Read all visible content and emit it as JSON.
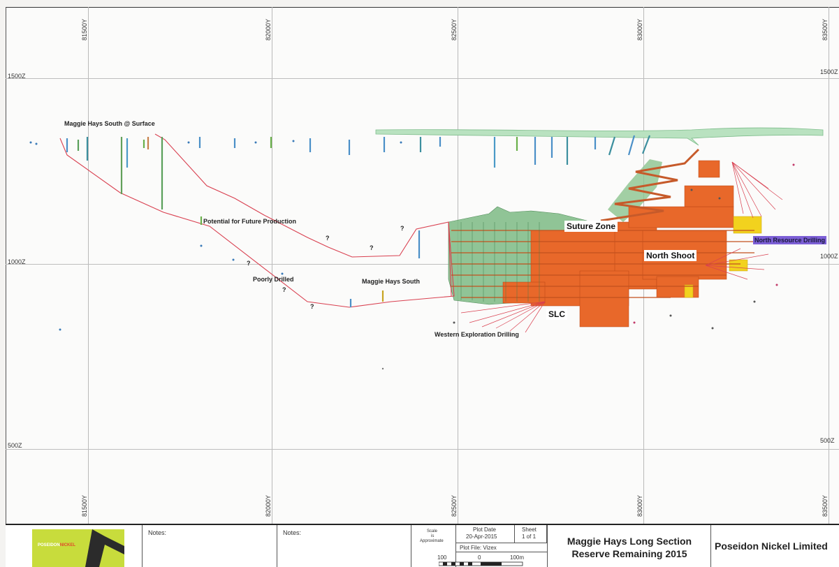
{
  "grid": {
    "northing_labels": [
      "81500Y",
      "82000Y",
      "82500Y",
      "83000Y",
      "83500Y"
    ],
    "elevation_labels": [
      "1500Z",
      "1000Z",
      "500Z"
    ]
  },
  "annotations": {
    "surface": "Maggie Hays South @ Surface",
    "future": "Potential for Future Production",
    "poorly": "Poorly Drilled",
    "mhs": "Maggie Hays South",
    "western": "Western Exploration Drilling",
    "suture": "Suture Zone",
    "north_shoot": "North Shoot",
    "slc": "SLC",
    "north_resource": "North Resource Drilling",
    "question": "?"
  },
  "colors": {
    "outline_red": "#d94050",
    "orebody_orange": "#e8682a",
    "green_domain": "#5fa86a",
    "surface_green": "#9ed4a8",
    "highlight_purple": "#7c5fd6",
    "logo_lime": "#c8dc3c"
  },
  "title_block": {
    "logo_text_a": "POSEIDON",
    "logo_text_b": "NICKEL",
    "notes_1": "Notes:",
    "notes_2": "Notes:",
    "scale_1": "Scale",
    "scale_2": "is",
    "scale_3": "Approximate",
    "plot_date_label": "Plot Date",
    "plot_date": "20-Apr-2015",
    "sheet_label": "Sheet",
    "sheet_value": "1 of 1",
    "plot_file": "Plot File: Vizex",
    "scale_left": "100",
    "scale_mid": "0",
    "scale_right": "100m",
    "title_line1": "Maggie Hays Long Section",
    "title_line2": "Reserve Remaining 2015",
    "company": "Poseidon Nickel Limited"
  }
}
